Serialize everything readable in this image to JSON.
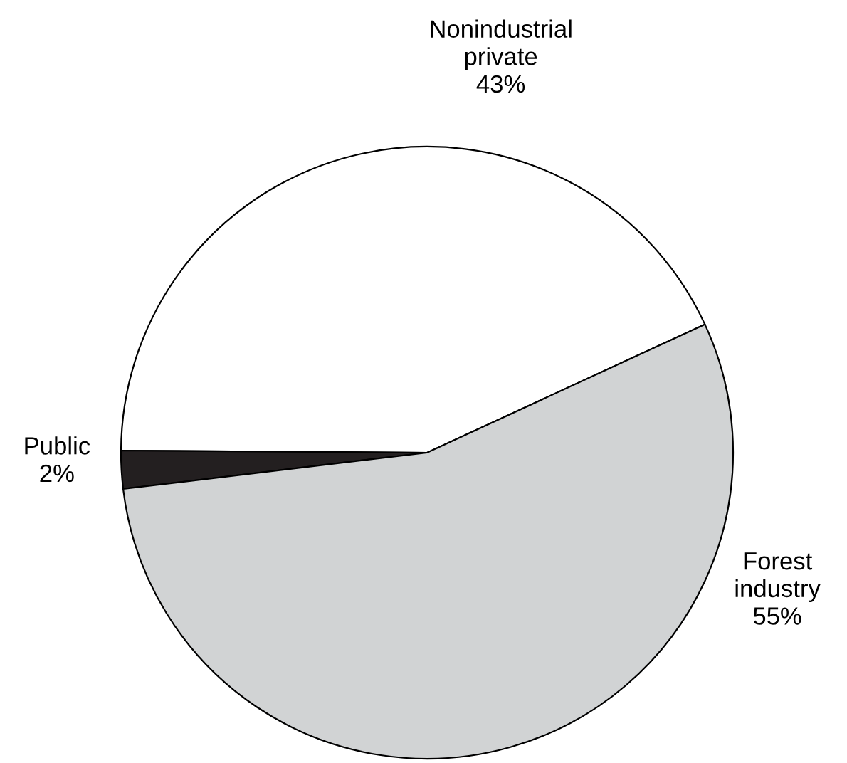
{
  "chart_data": {
    "type": "pie",
    "categories": [
      "Nonindustrial\nprivate",
      "Public",
      "Forest\nindustry"
    ],
    "values": [
      43,
      2,
      55
    ],
    "colors": [
      "#ffffff",
      "#231f20",
      "#d1d3d4"
    ],
    "value_labels": [
      "43%",
      "2%",
      "55%"
    ]
  }
}
